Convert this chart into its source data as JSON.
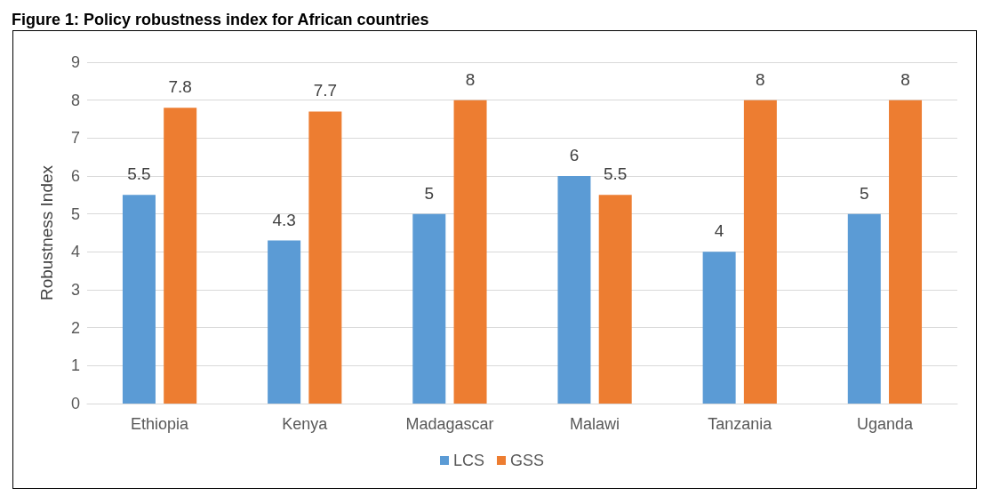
{
  "chart_data": {
    "type": "bar",
    "title": "Figure 1: Policy robustness index for African countries",
    "ylabel": "Robustness Index",
    "categories": [
      "Ethiopia",
      "Kenya",
      "Madagascar",
      "Malawi",
      "Tanzania",
      "Uganda"
    ],
    "series": [
      {
        "name": "LCS",
        "color": "#5b9bd5",
        "values": [
          5.5,
          4.3,
          5,
          6,
          4,
          5
        ]
      },
      {
        "name": "GSS",
        "color": "#ed7d31",
        "values": [
          7.8,
          7.7,
          8,
          5.5,
          8,
          8
        ]
      }
    ],
    "ylim": [
      0,
      9
    ],
    "yticks": [
      0,
      1,
      2,
      3,
      4,
      5,
      6,
      7,
      8,
      9
    ],
    "grid": "y",
    "legend": "bottom",
    "data_labels": true
  }
}
